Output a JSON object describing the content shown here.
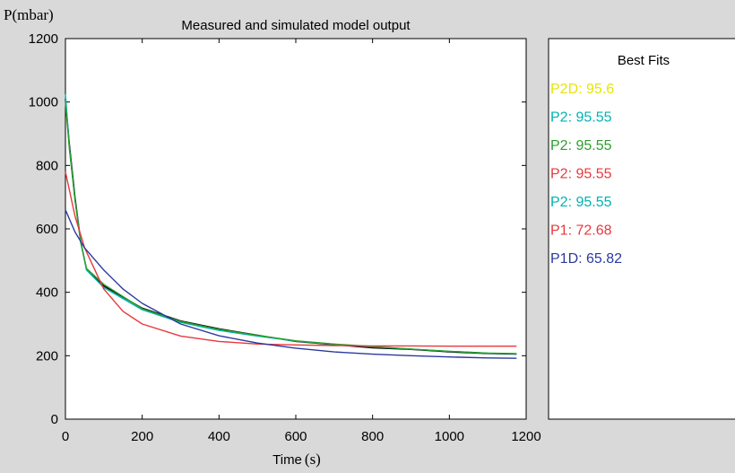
{
  "chart_data": {
    "type": "line",
    "title": "Measured and simulated model output",
    "ylabel": "P(mbar)",
    "xlabel_main": "Time",
    "xlabel_unit": "(s)",
    "xlim": [
      0,
      1200
    ],
    "ylim": [
      0,
      1200
    ],
    "xticks": [
      "0",
      "200",
      "400",
      "600",
      "800",
      "1000",
      "1200"
    ],
    "yticks": [
      "0",
      "200",
      "400",
      "600",
      "800",
      "1000",
      "1200"
    ],
    "xtick_values": [
      0,
      200,
      400,
      600,
      800,
      1000,
      1200
    ],
    "ytick_values": [
      0,
      200,
      400,
      600,
      800,
      1000,
      1200
    ],
    "grid": false,
    "legend_placement": "right panel",
    "series": [
      {
        "color": "#000000",
        "x": [
          0,
          10,
          25,
          40,
          55,
          100,
          200,
          300,
          400,
          500,
          600,
          700,
          800,
          900,
          1000,
          1100,
          1175
        ],
        "y": [
          1010,
          870,
          700,
          560,
          470,
          420,
          350,
          310,
          285,
          265,
          245,
          235,
          225,
          220,
          212,
          207,
          205
        ]
      },
      {
        "color": "#00b3b3",
        "x": [
          0,
          10,
          25,
          40,
          55,
          100,
          200,
          300,
          400,
          500,
          600,
          700,
          800,
          900,
          1000,
          1100,
          1175
        ],
        "y": [
          1025,
          860,
          690,
          560,
          470,
          415,
          345,
          305,
          280,
          262,
          246,
          236,
          228,
          221,
          214,
          208,
          206
        ]
      },
      {
        "color": "#2ca02c",
        "x": [
          0,
          10,
          25,
          40,
          55,
          100,
          200,
          300,
          400,
          500,
          600,
          700,
          800,
          900,
          1000,
          1100,
          1175
        ],
        "y": [
          1000,
          855,
          690,
          555,
          475,
          425,
          348,
          308,
          283,
          264,
          247,
          237,
          229,
          221,
          214,
          208,
          207
        ]
      },
      {
        "color": "#e8383d",
        "x": [
          0,
          25,
          50,
          100,
          150,
          200,
          300,
          400,
          500,
          600,
          700,
          800,
          900,
          1000,
          1100,
          1175
        ],
        "y": [
          780,
          640,
          540,
          410,
          340,
          300,
          262,
          245,
          237,
          234,
          232,
          231,
          231,
          230,
          230,
          230
        ]
      },
      {
        "color": "#2b3a9e",
        "x": [
          0,
          25,
          50,
          100,
          150,
          200,
          300,
          400,
          500,
          600,
          700,
          800,
          900,
          1000,
          1100,
          1175
        ],
        "y": [
          660,
          590,
          540,
          470,
          410,
          365,
          300,
          263,
          240,
          224,
          212,
          205,
          200,
          196,
          193,
          192
        ]
      }
    ]
  },
  "legend": {
    "title": "Best Fits",
    "entries": [
      {
        "label": "P2D: 95.6",
        "color": "#e6e600"
      },
      {
        "label": "P2: 95.55",
        "color": "#00b3b3"
      },
      {
        "label": "P2: 95.55",
        "color": "#2ca02c"
      },
      {
        "label": "P2: 95.55",
        "color": "#e8383d"
      },
      {
        "label": "P2: 95.55",
        "color": "#00b3b3"
      },
      {
        "label": "P1: 72.68",
        "color": "#e8383d"
      },
      {
        "label": "P1D: 65.82",
        "color": "#2b3a9e"
      }
    ]
  },
  "colors": {
    "background": "#d9d9d9",
    "plot_background": "#ffffff"
  }
}
